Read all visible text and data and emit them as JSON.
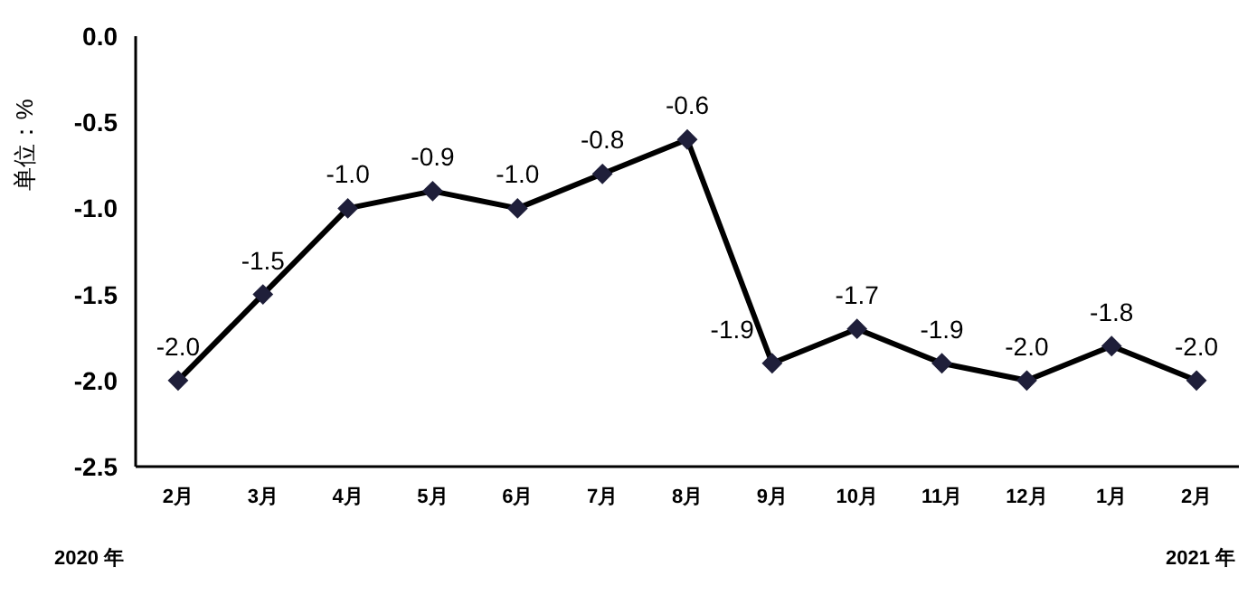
{
  "chart_data": {
    "type": "line",
    "ylabel": "单位：%",
    "categories": [
      "2月",
      "3月",
      "4月",
      "5月",
      "6月",
      "7月",
      "8月",
      "9月",
      "10月",
      "11月",
      "12月",
      "1月",
      "2月"
    ],
    "series": [
      {
        "color": "#000000",
        "values": [
          -2.0,
          -1.5,
          -1.0,
          -0.9,
          -1.0,
          -0.8,
          -0.6,
          -1.9,
          -1.7,
          -1.9,
          -2.0,
          -1.8,
          -2.0
        ],
        "value_labels": [
          "-2.0",
          "-1.5",
          "-1.0",
          "-0.9",
          "-1.0",
          "-0.8",
          "-0.6",
          "-1.9",
          "-1.7",
          "-1.9",
          "-2.0",
          "-1.8",
          "-2.0"
        ]
      }
    ],
    "ylim": [
      -2.5,
      0.0
    ],
    "yticks": [
      {
        "value": 0,
        "label": "0.0"
      },
      -0.5,
      {
        "value": -1,
        "label": "-1.0"
      },
      -1.5,
      {
        "value": -2,
        "label": "-2.0"
      },
      -2.5
    ],
    "marker": "diamond",
    "line_style": "solid",
    "grid": false,
    "annotations": [
      "2020 年",
      "2021 年"
    ]
  }
}
